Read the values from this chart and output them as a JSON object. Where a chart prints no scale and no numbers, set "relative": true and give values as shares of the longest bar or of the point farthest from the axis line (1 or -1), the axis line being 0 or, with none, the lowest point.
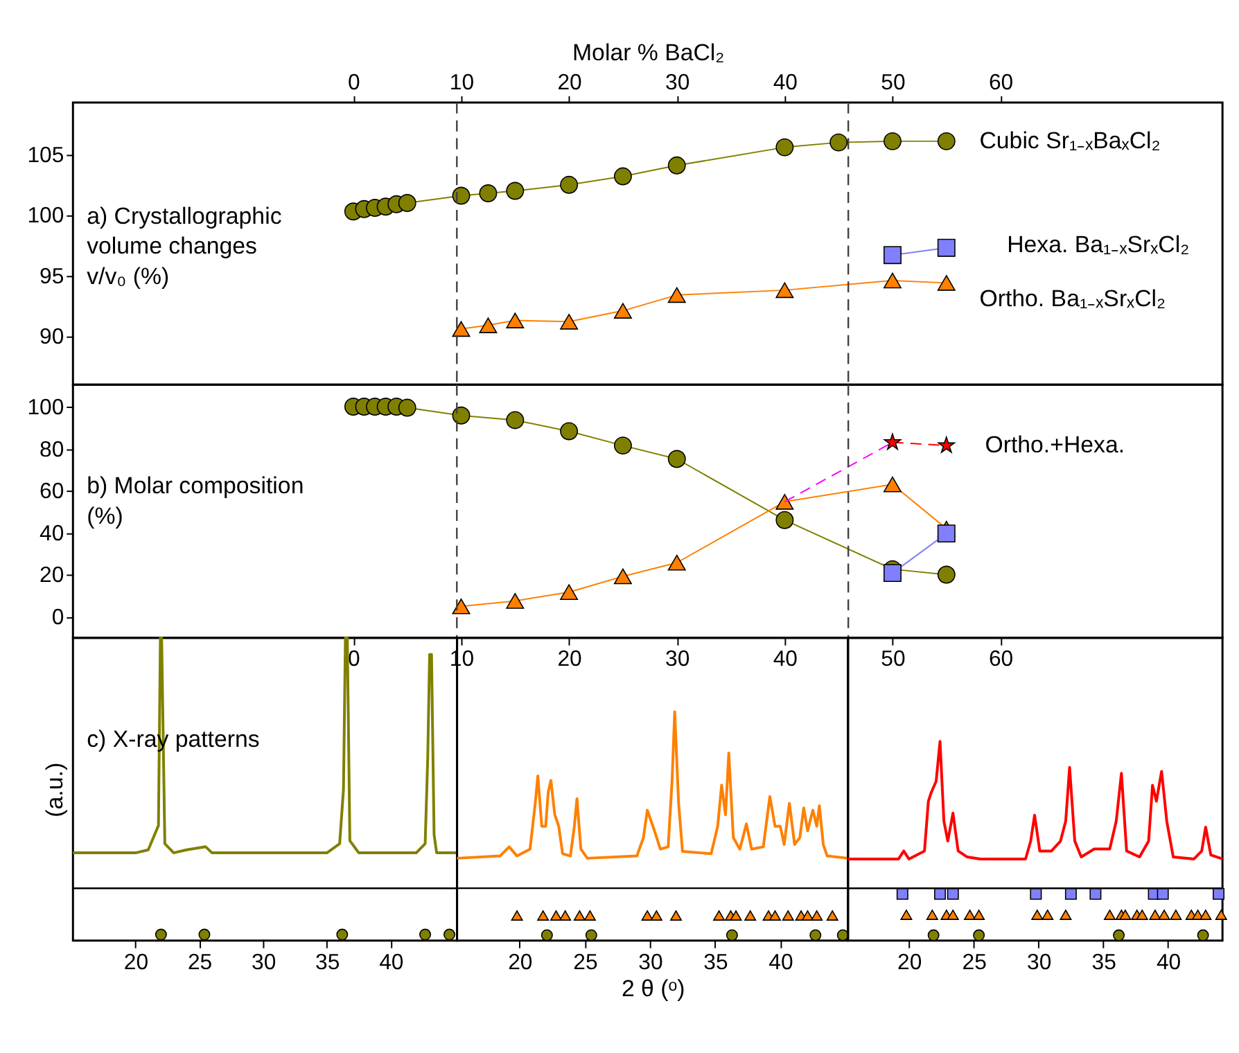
{
  "chart_data": [
    {
      "type": "line",
      "xlabel": "Molar % BaCl₂",
      "xlim": [
        -26.0,
        80.6
      ],
      "xticks": [
        0,
        10,
        20,
        30,
        40,
        50,
        60
      ],
      "ylim": [
        86,
        109.3
      ],
      "yticks": [
        90,
        95,
        100,
        105
      ],
      "annotations": [
        "a) Crystallographic\nvolume changes\nv/v₀ (%)"
      ],
      "ref_lines": [
        {
          "axis": "x",
          "value": 9.6,
          "line_style": "dashed",
          "color": "#404040"
        },
        {
          "axis": "x",
          "value": 45.9,
          "line_style": "dashed",
          "color": "#404040"
        }
      ],
      "series": [
        {
          "name": "Cubic Sr₁₋ₓBaₓCl₂",
          "color": "#808000",
          "marker": "circle",
          "x": [
            0,
            1,
            2,
            3,
            4,
            5,
            10,
            12.5,
            15,
            20,
            25,
            30,
            40,
            45,
            50,
            55
          ],
          "values": [
            100.3,
            100.5,
            100.6,
            100.7,
            100.9,
            101.0,
            101.6,
            101.8,
            102.0,
            102.5,
            103.2,
            104.1,
            105.6,
            106.0,
            106.1,
            106.1
          ]
        },
        {
          "name": "Hexa. Ba₁₋ₓSrₓCl₂",
          "color": "#8080ff",
          "marker": "square",
          "x": [
            50,
            55
          ],
          "values": [
            96.7,
            97.3
          ]
        },
        {
          "name": "Ortho. Ba₁₋ₓSrₓCl₂",
          "color": "#ff8000",
          "marker": "triangle",
          "x": [
            10,
            12.5,
            15,
            20,
            25,
            30,
            40,
            50,
            55
          ],
          "values": [
            90.6,
            90.9,
            91.3,
            91.2,
            92.1,
            93.4,
            93.8,
            94.6,
            94.4
          ]
        }
      ]
    },
    {
      "type": "line",
      "xlim": [
        -26.0,
        80.6
      ],
      "xticks": [
        0,
        10,
        20,
        30,
        40,
        50,
        60
      ],
      "ylim": [
        -10.1,
        110.5
      ],
      "yticks": [
        0,
        20,
        40,
        60,
        80,
        100
      ],
      "annotations": [
        "b) Molar composition\n(%)"
      ],
      "ref_lines": [
        {
          "axis": "x",
          "value": 9.6,
          "line_style": "dashed",
          "color": "#404040"
        },
        {
          "axis": "x",
          "value": 45.9,
          "line_style": "dashed",
          "color": "#404040"
        }
      ],
      "series": [
        {
          "color": "#808000",
          "marker": "circle",
          "x": [
            0,
            1,
            2,
            3,
            4,
            5,
            10,
            15,
            20,
            25,
            30,
            40,
            50,
            55
          ],
          "values": [
            100,
            100,
            100,
            100,
            100,
            99.5,
            95.8,
            93.6,
            88.3,
            81.5,
            75.1,
            46,
            22.6,
            20
          ]
        },
        {
          "color": "#ff8000",
          "marker": "triangle",
          "x": [
            10,
            15,
            20,
            25,
            30,
            40,
            50,
            55
          ],
          "values": [
            4.9,
            7.5,
            11.7,
            19.2,
            25.7,
            54.7,
            63,
            41.9
          ]
        },
        {
          "color": "#8080ff",
          "marker": "square",
          "x": [
            50,
            55
          ],
          "values": [
            20.8,
            39.6
          ]
        },
        {
          "color": "#ff00ff",
          "marker": "none",
          "line_style": "dashed",
          "x": [
            40,
            50
          ],
          "values": [
            54.7,
            83
          ]
        },
        {
          "name": "Ortho.+Hexa.",
          "color": "#ff0000",
          "marker": "star",
          "line_style": "dashed",
          "x": [
            50,
            55
          ],
          "values": [
            83,
            81.5
          ]
        }
      ]
    },
    {
      "type": "line",
      "relative": true,
      "xlim": [
        15.1,
        45.2
      ],
      "xticks": [
        20,
        25,
        30,
        35,
        40
      ],
      "tick_labels": "x",
      "ylabel": "(a.u.)",
      "annotations": [
        "c) X-ray patterns"
      ],
      "ref_lines": [
        {
          "axis": "y",
          "value": 0.173,
          "line_style": "solid",
          "color": "#000000"
        }
      ],
      "series": [
        {
          "color": "#808000",
          "x": [
            15.1,
            20,
            21,
            21.5,
            21.8,
            21.95,
            22.05,
            22.3,
            23,
            24,
            25.5,
            26,
            30,
            35,
            36.0,
            36.3,
            36.45,
            36.6,
            36.8,
            37.5,
            42,
            42.7,
            42.9,
            43.05,
            43.2,
            43.4,
            43.6,
            45.2
          ],
          "values": [
            0.29,
            0.29,
            0.3,
            0.35,
            0.38,
            1,
            1,
            0.32,
            0.29,
            0.3,
            0.31,
            0.29,
            0.29,
            0.29,
            0.32,
            0.5,
            1,
            1,
            0.33,
            0.29,
            0.29,
            0.32,
            0.6,
            0.945,
            0.945,
            0.35,
            0.29,
            0.29
          ]
        },
        {
          "type": "scatter",
          "color": "#808000",
          "marker": "circle",
          "x": [
            22.0,
            25.4,
            36.2,
            42.7,
            44.6
          ],
          "values": [
            0.02,
            0.02,
            0.02,
            0.02,
            0.02
          ]
        }
      ]
    },
    {
      "type": "line",
      "relative": true,
      "xlim": [
        15.2,
        45.2
      ],
      "xticks": [
        20,
        25,
        30,
        35,
        40
      ],
      "tick_labels": "x",
      "xlabel": "2 θ (ᵒ)",
      "ref_lines": [
        {
          "axis": "y",
          "value": 0.229,
          "line_style": "solid",
          "color": "#000000"
        }
      ],
      "series": [
        {
          "color": "#ff8000",
          "x": [
            15.2,
            18.5,
            19.2,
            19.8,
            20.8,
            21.2,
            21.4,
            21.7,
            22.0,
            22.2,
            22.4,
            22.7,
            23.0,
            23.3,
            23.9,
            24.2,
            24.4,
            24.7,
            25.2,
            29.0,
            29.5,
            29.8,
            30.35,
            30.8,
            31.4,
            31.7,
            31.9,
            32.2,
            32.5,
            34.7,
            35.2,
            35.5,
            35.8,
            36.05,
            36.4,
            36.9,
            37.4,
            37.8,
            38.7,
            39.2,
            39.6,
            40.0,
            40.3,
            40.7,
            41.1,
            41.5,
            41.8,
            42.1,
            42.5,
            42.8,
            43.0,
            43.3,
            43.6,
            45.2
          ],
          "values": [
            0.36,
            0.37,
            0.41,
            0.37,
            0.4,
            0.6,
            0.72,
            0.5,
            0.5,
            0.65,
            0.7,
            0.55,
            0.5,
            0.38,
            0.37,
            0.5,
            0.62,
            0.4,
            0.36,
            0.37,
            0.45,
            0.57,
            0.48,
            0.4,
            0.41,
            0.7,
            1,
            0.6,
            0.39,
            0.38,
            0.5,
            0.68,
            0.55,
            0.82,
            0.45,
            0.4,
            0.51,
            0.4,
            0.41,
            0.63,
            0.5,
            0.5,
            0.42,
            0.6,
            0.42,
            0.45,
            0.58,
            0.48,
            0.57,
            0.5,
            0.59,
            0.42,
            0.37,
            0.36
          ]
        },
        {
          "type": "scatter",
          "color": "#ff8000",
          "marker": "triangle",
          "x": [
            19.8,
            21.8,
            22.8,
            23.5,
            24.6,
            25.4,
            29.8,
            30.5,
            32.0,
            35.3,
            36.2,
            36.6,
            37.7,
            39.1,
            39.6,
            40.6,
            41.6,
            42.1,
            42.8,
            44.0
          ],
          "values": [
            0.11,
            0.11,
            0.11,
            0.11,
            0.11,
            0.11,
            0.11,
            0.11,
            0.11,
            0.11,
            0.11,
            0.11,
            0.11,
            0.11,
            0.11,
            0.11,
            0.11,
            0.11,
            0.11,
            0.11
          ]
        },
        {
          "type": "scatter",
          "color": "#808000",
          "marker": "circle",
          "x": [
            22.1,
            25.5,
            36.3,
            42.7,
            44.8
          ],
          "values": [
            0.024,
            0.024,
            0.024,
            0.024,
            0.024
          ]
        }
      ]
    },
    {
      "type": "line",
      "relative": true,
      "xlim": [
        15.3,
        44.2
      ],
      "xticks": [
        20,
        25,
        30,
        35,
        40
      ],
      "tick_labels": "x",
      "ref_lines": [
        {
          "axis": "y",
          "value": 0.263,
          "line_style": "solid",
          "color": "#000000"
        }
      ],
      "series": [
        {
          "color": "#ff0000",
          "x": [
            15.3,
            19.2,
            19.6,
            20.0,
            21.2,
            21.5,
            21.7,
            22.1,
            22.4,
            22.7,
            23.0,
            23.4,
            23.8,
            24.5,
            25.5,
            29.0,
            29.4,
            29.7,
            30.1,
            31.0,
            31.7,
            32.1,
            32.4,
            32.8,
            33.3,
            34.3,
            35.5,
            36.0,
            36.4,
            36.8,
            37.8,
            38.5,
            38.8,
            39.1,
            39.5,
            39.9,
            40.4,
            42.0,
            42.6,
            42.9,
            43.3,
            44.2
          ],
          "values": [
            0.41,
            0.41,
            0.45,
            0.41,
            0.45,
            0.7,
            0.74,
            0.8,
            1,
            0.6,
            0.5,
            0.64,
            0.45,
            0.42,
            0.41,
            0.41,
            0.5,
            0.63,
            0.45,
            0.45,
            0.5,
            0.6,
            0.87,
            0.5,
            0.42,
            0.46,
            0.46,
            0.6,
            0.84,
            0.45,
            0.42,
            0.5,
            0.78,
            0.7,
            0.85,
            0.6,
            0.42,
            0.41,
            0.45,
            0.57,
            0.43,
            0.41
          ]
        },
        {
          "type": "scatter",
          "color": "#8080ff",
          "marker": "square",
          "x": [
            19.5,
            22.4,
            23.4,
            29.8,
            32.5,
            34.4,
            38.9,
            39.6,
            43.9
          ],
          "values": [
            0.235,
            0.235,
            0.235,
            0.235,
            0.235,
            0.235,
            0.235,
            0.235,
            0.235
          ]
        },
        {
          "type": "scatter",
          "color": "#ff8000",
          "marker": "triangle",
          "x": [
            19.8,
            21.8,
            22.9,
            23.4,
            24.7,
            25.4,
            29.9,
            30.7,
            32.1,
            35.5,
            36.4,
            36.7,
            37.6,
            38.0,
            39.0,
            39.7,
            40.6,
            41.8,
            42.3,
            42.9,
            44.1
          ],
          "values": [
            0.13,
            0.13,
            0.13,
            0.13,
            0.13,
            0.13,
            0.13,
            0.13,
            0.13,
            0.13,
            0.13,
            0.13,
            0.13,
            0.13,
            0.13,
            0.13,
            0.13,
            0.13,
            0.13,
            0.13,
            0.13
          ]
        },
        {
          "type": "scatter",
          "color": "#808000",
          "marker": "circle",
          "x": [
            21.9,
            25.4,
            36.2,
            42.7
          ],
          "values": [
            0.027,
            0.027,
            0.027,
            0.027
          ]
        }
      ]
    }
  ]
}
